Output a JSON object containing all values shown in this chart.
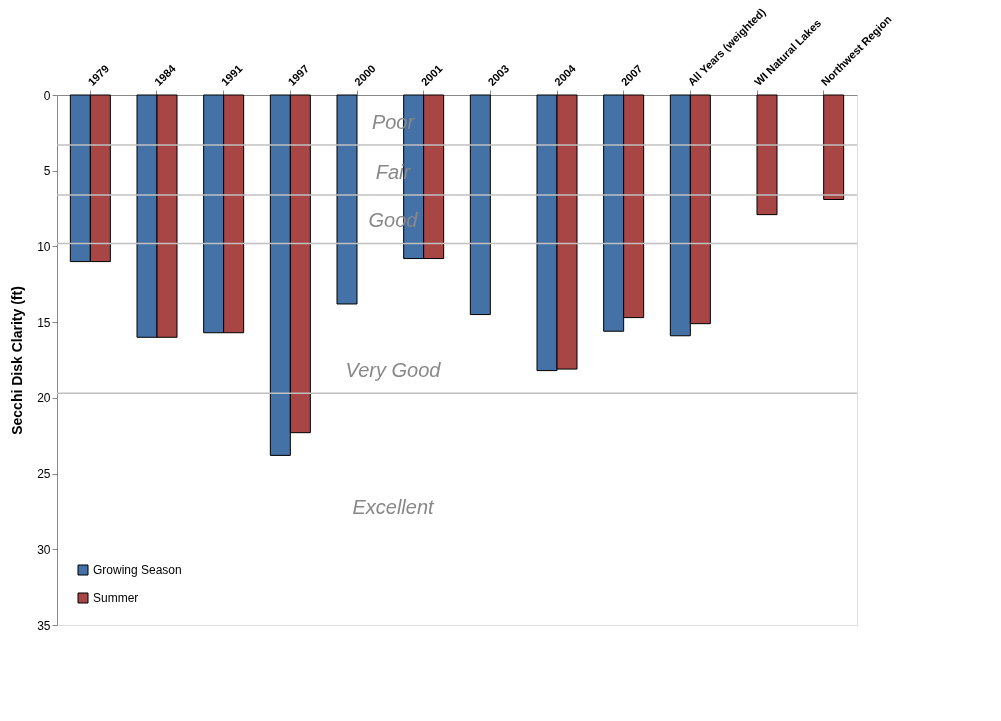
{
  "chart_data": {
    "type": "bar",
    "ylabel": "Secchi Disk Clarity  (ft)",
    "categories": [
      "1979",
      "1984",
      "1991",
      "1997",
      "2000",
      "2001",
      "2003",
      "2004",
      "2007",
      "All Years (weighted)",
      "WI Natural  Lakes",
      "Northwest Region"
    ],
    "series": [
      {
        "name": "Growing Season",
        "color": "#4472a6",
        "values": [
          11.0,
          16.0,
          15.7,
          23.8,
          13.8,
          10.8,
          14.5,
          18.2,
          15.6,
          15.9,
          null,
          null
        ]
      },
      {
        "name": "Summer",
        "color": "#a84545",
        "values": [
          11.0,
          16.0,
          15.7,
          22.3,
          null,
          10.8,
          null,
          18.1,
          14.7,
          15.1,
          7.9,
          6.9
        ]
      }
    ],
    "ylim": [
      35,
      0
    ],
    "yticks": [
      0,
      5,
      10,
      15,
      20,
      25,
      30,
      35
    ],
    "grid": false,
    "legend": "bottom left",
    "ref_lines": [
      {
        "axis": "y",
        "value": 3.3,
        "label": "Poor",
        "color": "#c0c0c0"
      },
      {
        "axis": "y",
        "value": 6.6,
        "label": "Fair",
        "color": "#c0c0c0"
      },
      {
        "axis": "y",
        "value": 9.8,
        "label": "Good",
        "color": "#c0c0c0"
      },
      {
        "axis": "y",
        "value": 19.7,
        "label": "Very Good",
        "color": "#c0c0c0"
      }
    ],
    "annotations": [
      "Excellent"
    ]
  }
}
